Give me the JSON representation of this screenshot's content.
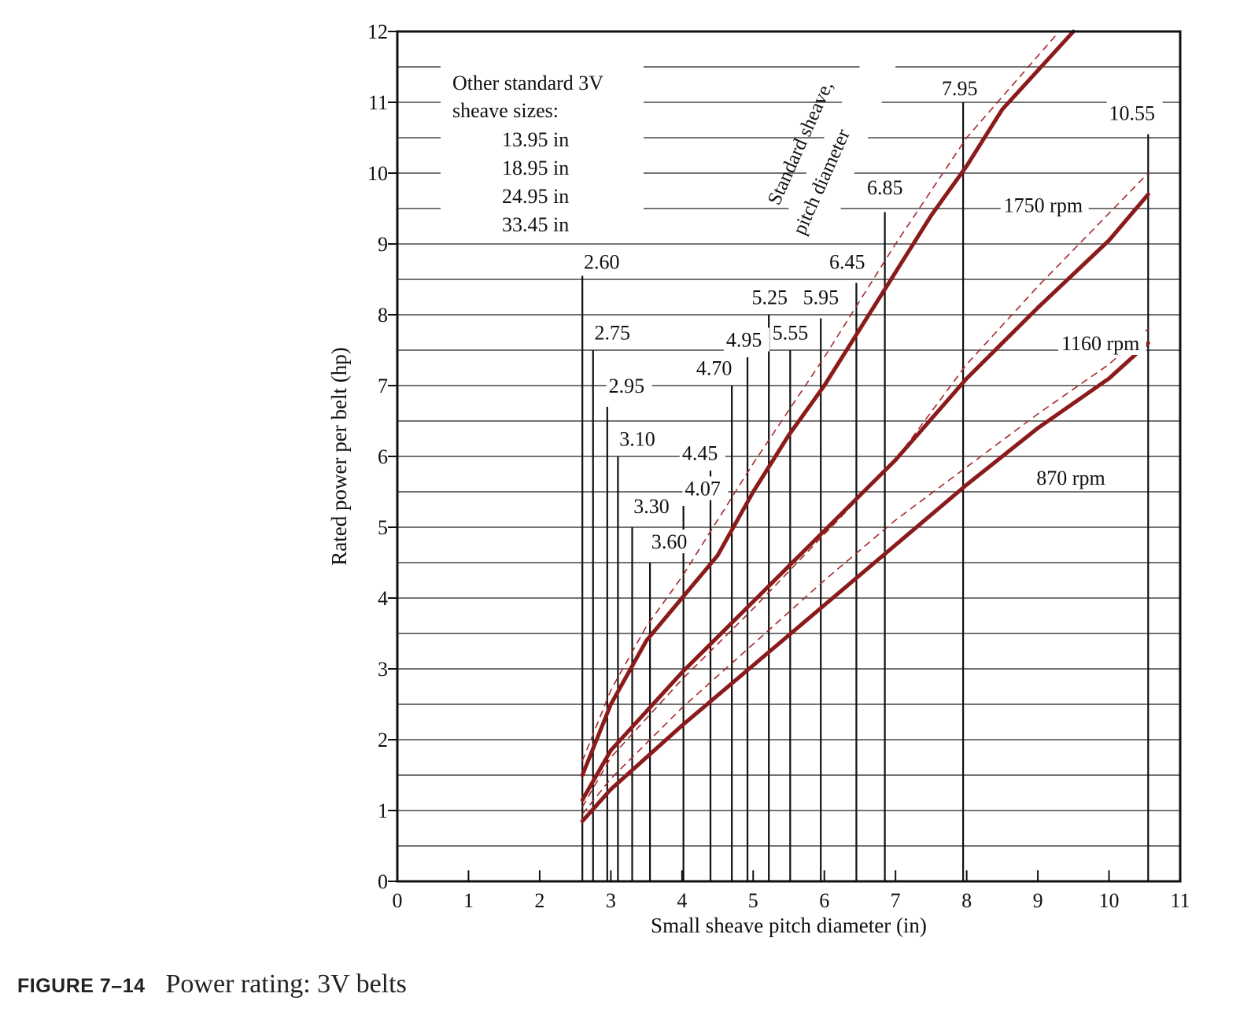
{
  "figure": {
    "label": "FIGURE 7–14",
    "title": "Power rating: 3V belts"
  },
  "chart_data": {
    "type": "line",
    "xlabel": "Small sheave pitch diameter (in)",
    "ylabel": "Rated power per belt (hp)",
    "xlim": [
      0,
      11
    ],
    "ylim": [
      0,
      12
    ],
    "x_ticks": [
      0,
      1,
      2,
      3,
      4,
      5,
      6,
      7,
      8,
      9,
      10,
      11
    ],
    "y_ticks": [
      0,
      1,
      2,
      3,
      4,
      5,
      6,
      7,
      8,
      9,
      10,
      11,
      12
    ],
    "grid": "horizontal lines every 0.5 hp",
    "colors": {
      "curve": "#8b1a1a",
      "dashed": "#a8282c",
      "ink": "#111111"
    },
    "series": [
      {
        "name": "1750 rpm",
        "x": [
          2.6,
          3.0,
          3.5,
          4.0,
          4.5,
          5.0,
          5.5,
          6.0,
          6.5,
          7.0,
          7.5,
          8.0,
          8.5,
          9.5
        ],
        "y": [
          1.5,
          2.5,
          3.4,
          4.0,
          4.6,
          5.5,
          6.3,
          7.0,
          7.8,
          8.6,
          9.4,
          10.1,
          10.9,
          12.0
        ]
      },
      {
        "name": "1160 rpm",
        "x": [
          2.6,
          3.0,
          4.0,
          5.0,
          6.0,
          7.0,
          8.0,
          9.0,
          10.0,
          10.55
        ],
        "y": [
          1.15,
          1.85,
          2.95,
          3.95,
          4.95,
          5.95,
          7.1,
          8.1,
          9.05,
          9.7
        ]
      },
      {
        "name": "870 rpm",
        "x": [
          2.6,
          3.0,
          4.0,
          5.0,
          6.0,
          7.0,
          8.0,
          9.0,
          10.0,
          10.55
        ],
        "y": [
          0.85,
          1.3,
          2.2,
          3.05,
          3.9,
          4.75,
          5.6,
          6.4,
          7.1,
          7.6
        ]
      }
    ],
    "dashed_series": [
      {
        "x": [
          2.6,
          3.0,
          3.5,
          4.0,
          5.0,
          6.0,
          7.0,
          8.0,
          9.3
        ],
        "y": [
          1.7,
          2.7,
          3.6,
          4.3,
          5.9,
          7.4,
          9.0,
          10.5,
          12.0
        ]
      },
      {
        "x": [
          2.6,
          3.0,
          4.0,
          5.0,
          6.0,
          7.0,
          8.0,
          9.0,
          10.55
        ],
        "y": [
          1.05,
          1.75,
          2.85,
          3.85,
          4.9,
          5.95,
          7.3,
          8.4,
          10.0
        ]
      },
      {
        "x": [
          2.6,
          3.0,
          4.0,
          5.0,
          6.0,
          7.0,
          8.0,
          9.0,
          10.0,
          10.55
        ],
        "y": [
          0.95,
          1.45,
          2.45,
          3.35,
          4.25,
          5.1,
          5.85,
          6.6,
          7.3,
          7.8
        ]
      }
    ],
    "series_labels": [
      {
        "text": "1750 rpm",
        "x": 8.52,
        "y": 9.45
      },
      {
        "text": "1160 rpm",
        "x": 9.33,
        "y": 7.5
      },
      {
        "text": "870 rpm",
        "x": 8.98,
        "y": 5.6
      }
    ],
    "standard_sheaves": [
      {
        "label": "2.60",
        "x": 2.6,
        "top": 8.55,
        "lx": 2.62,
        "ly": 8.65
      },
      {
        "label": "2.75",
        "x": 2.75,
        "top": 7.5,
        "lx": 2.77,
        "ly": 7.65
      },
      {
        "label": "2.95",
        "x": 2.95,
        "top": 6.7,
        "lx": 2.97,
        "ly": 6.9
      },
      {
        "label": "3.10",
        "x": 3.1,
        "top": 6.0,
        "lx": 3.12,
        "ly": 6.15
      },
      {
        "label": "3.30",
        "x": 3.3,
        "top": 5.0,
        "lx": 3.32,
        "ly": 5.2
      },
      {
        "label": "3.60",
        "x": 3.55,
        "top": 4.5,
        "lx": 3.57,
        "ly": 4.7
      },
      {
        "label": "4.07",
        "x": 4.02,
        "top": 5.3,
        "lx": 4.04,
        "ly": 5.45
      },
      {
        "label": "4.45",
        "x": 4.4,
        "top": 5.8,
        "lx": 4.0,
        "ly": 5.95
      },
      {
        "label": "4.70",
        "x": 4.7,
        "top": 7.0,
        "lx": 4.2,
        "ly": 7.15
      },
      {
        "label": "4.95",
        "x": 4.92,
        "top": 7.4,
        "lx": 4.62,
        "ly": 7.55
      },
      {
        "label": "5.25",
        "x": 5.22,
        "top": 8.0,
        "lx": 4.98,
        "ly": 8.15
      },
      {
        "label": "5.55",
        "x": 5.52,
        "top": 7.5,
        "lx": 5.27,
        "ly": 7.65
      },
      {
        "label": "5.95",
        "x": 5.95,
        "top": 7.95,
        "lx": 5.7,
        "ly": 8.15
      },
      {
        "label": "6.45",
        "x": 6.45,
        "top": 8.45,
        "lx": 6.07,
        "ly": 8.65
      },
      {
        "label": "6.85",
        "x": 6.85,
        "top": 9.45,
        "lx": 6.6,
        "ly": 9.7
      },
      {
        "label": "7.95",
        "x": 7.95,
        "top": 11.0,
        "lx": 7.65,
        "ly": 11.1
      },
      {
        "label": "10.55",
        "x": 10.55,
        "top": 10.55,
        "lx": 10.0,
        "ly": 10.75
      }
    ],
    "annotations": {
      "other_sizes_heading_1": "Other standard 3V",
      "other_sizes_heading_2": "sheave sizes:",
      "other_sizes": [
        "13.95 in",
        "18.95 in",
        "24.95 in",
        "33.45 in"
      ],
      "rotated_label_1": "Standard sheave,",
      "rotated_label_2": "pitch diameter"
    }
  }
}
